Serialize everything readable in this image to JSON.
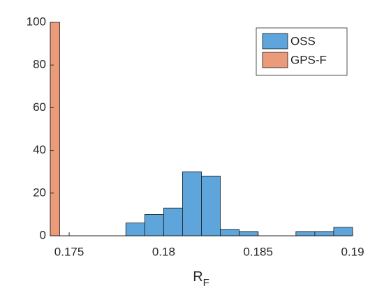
{
  "chart_data": {
    "type": "histogram",
    "xlabel": {
      "main": "R",
      "sub": "F"
    },
    "series": [
      {
        "name": "OSS",
        "color": "#5da5da",
        "bins": [
          0.178,
          0.179,
          0.18,
          0.181,
          0.182,
          0.183,
          0.184,
          0.185,
          0.186,
          0.187,
          0.188,
          0.189,
          0.19
        ],
        "values": [
          6,
          10,
          13,
          30,
          28,
          3,
          2,
          0,
          0,
          2,
          2,
          4
        ]
      },
      {
        "name": "GPS-F",
        "color": "#eb9a7a",
        "bins": [
          0.174,
          0.1745
        ],
        "values": [
          100
        ]
      }
    ],
    "xlim": [
      0.174,
      0.19
    ],
    "ylim": [
      0,
      100
    ],
    "xticks": [
      0.175,
      0.18,
      0.185,
      0.19
    ],
    "yticks": [
      0,
      20,
      40,
      60,
      80,
      100
    ],
    "legend": "northeast",
    "grid": false
  }
}
